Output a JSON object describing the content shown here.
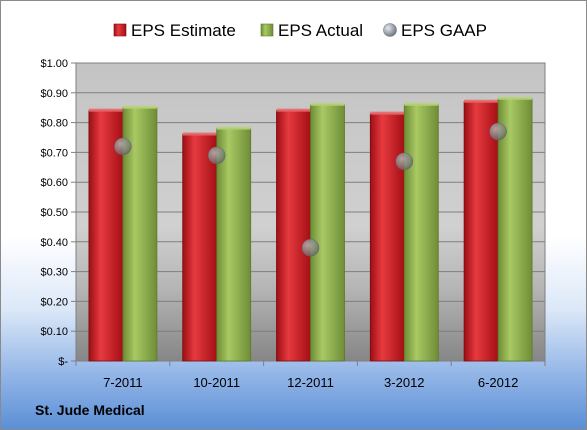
{
  "company_label": "St. Jude Medical",
  "colors": {
    "estimate": "#c8141c",
    "actual": "#8db04a",
    "gaap": "#9aa3ad"
  },
  "chart_data": {
    "type": "bar",
    "categories": [
      "7-2011",
      "10-2011",
      "12-2011",
      "3-2012",
      "6-2012"
    ],
    "series": [
      {
        "name": "EPS Estimate",
        "kind": "bar",
        "values": [
          0.84,
          0.76,
          0.84,
          0.83,
          0.87
        ]
      },
      {
        "name": "EPS Actual",
        "kind": "bar",
        "values": [
          0.85,
          0.78,
          0.86,
          0.86,
          0.88
        ]
      },
      {
        "name": "EPS GAAP",
        "kind": "marker",
        "values": [
          0.72,
          0.69,
          0.38,
          0.67,
          0.77
        ]
      }
    ],
    "ylim": [
      0,
      1.0
    ],
    "yticks": [
      0,
      0.1,
      0.2,
      0.3,
      0.4,
      0.5,
      0.6,
      0.7,
      0.8,
      0.9,
      1.0
    ],
    "ytick_labels": [
      "$-",
      "$0.10",
      "$0.20",
      "$0.30",
      "$0.40",
      "$0.50",
      "$0.60",
      "$0.70",
      "$0.80",
      "$0.90",
      "$1.00"
    ],
    "legend_position": "top",
    "grid": true
  }
}
